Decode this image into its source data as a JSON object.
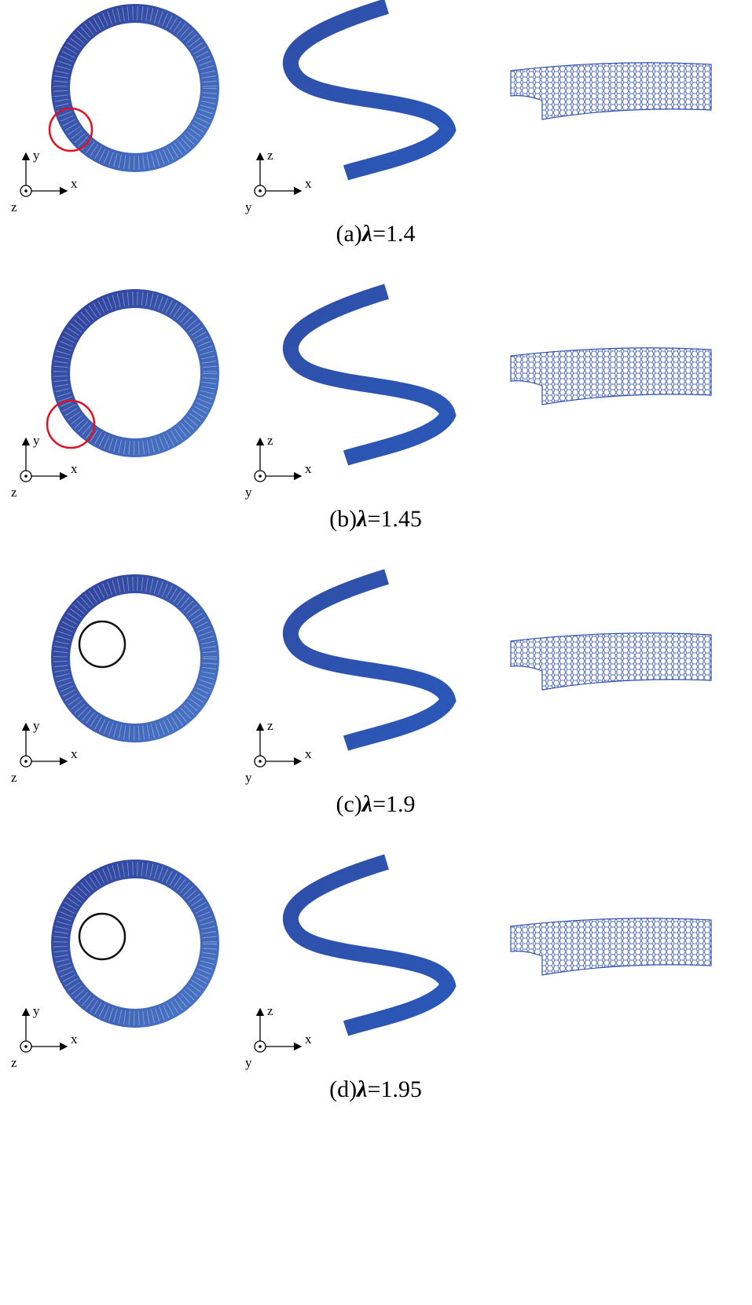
{
  "panels": [
    {
      "label": "(a)",
      "symbol": "λ",
      "value": "=1.4",
      "marker_color": "#e01020",
      "left_axes": {
        "horizontal": "x",
        "vertical": "y",
        "out": "z"
      },
      "middle_axes": {
        "horizontal": "x",
        "vertical": "z",
        "out": "y"
      }
    },
    {
      "label": "(b)",
      "symbol": "λ",
      "value": "=1.45",
      "marker_color": "#e01020",
      "left_axes": {
        "horizontal": "x",
        "vertical": "y",
        "out": "z"
      },
      "middle_axes": {
        "horizontal": "x",
        "vertical": "z",
        "out": "y"
      }
    },
    {
      "label": "(c)",
      "symbol": "λ",
      "value": "=1.9",
      "marker_color": "#111111",
      "left_axes": {
        "horizontal": "x",
        "vertical": "y",
        "out": "z"
      },
      "middle_axes": {
        "horizontal": "x",
        "vertical": "z",
        "out": "y"
      }
    },
    {
      "label": "(d)",
      "symbol": "λ",
      "value": "=1.95",
      "marker_color": "#111111",
      "left_axes": {
        "horizontal": "x",
        "vertical": "y",
        "out": "z"
      },
      "middle_axes": {
        "horizontal": "x",
        "vertical": "z",
        "out": "y"
      }
    }
  ]
}
